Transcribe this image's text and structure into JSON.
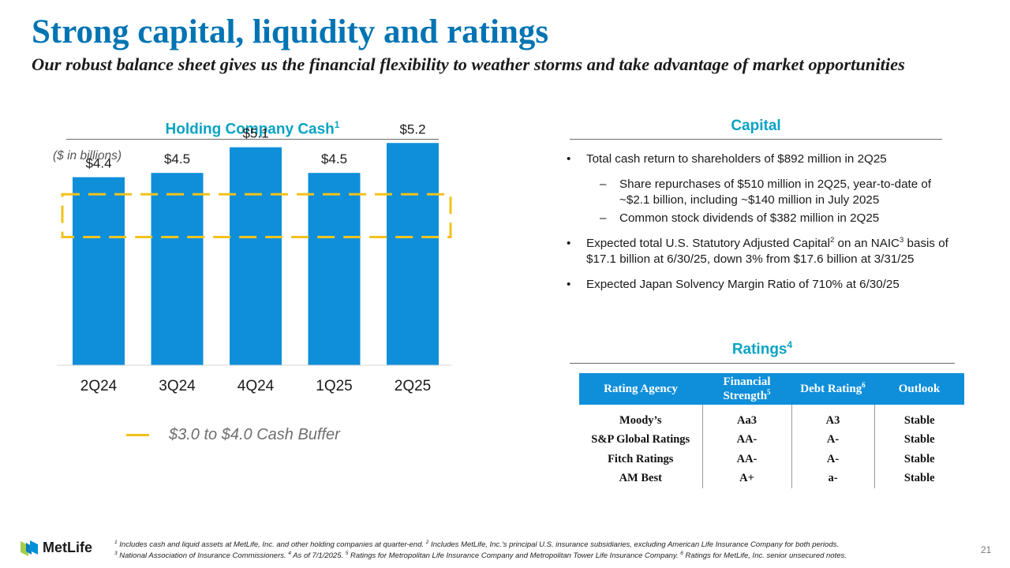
{
  "header": {
    "title": "Strong capital, liquidity and ratings",
    "subtitle": "Our robust balance sheet gives us the financial flexibility to weather storms and take advantage of market opportunities"
  },
  "left_panel": {
    "title": "Holding Company Cash",
    "title_sup": "1",
    "units": "($ in billions)",
    "legend_label": "$3.0 to $4.0 Cash Buffer"
  },
  "chart_data": {
    "type": "bar",
    "title": "Holding Company Cash",
    "units": "$ in billions",
    "categories": [
      "2Q24",
      "3Q24",
      "4Q24",
      "1Q25",
      "2Q25"
    ],
    "values": [
      4.4,
      4.5,
      5.1,
      4.5,
      5.2
    ],
    "data_labels": [
      "$4.4",
      "$4.5",
      "$5.1",
      "$4.5",
      "$5.2"
    ],
    "ylim": [
      0,
      5.5
    ],
    "buffer_range": [
      3.0,
      4.0
    ],
    "bar_color": "#0f8fda",
    "buffer_color": "#f2c21b",
    "grid": false
  },
  "capital": {
    "title": "Capital",
    "b1": "Total cash return to shareholders of $892 million in 2Q25",
    "b1_sub1": "Share repurchases of $510 million in 2Q25, year-to-date of ~$2.1 billion, including ~$140 million in July 2025",
    "b1_sub2": "Common stock dividends of $382 million in 2Q25",
    "b2_part1": "Expected total U.S. Statutory Adjusted Capital",
    "b2_sup1": "2",
    "b2_part2": " on an NAIC",
    "b2_sup2": "3",
    "b2_part3": " basis of $17.1 billion at 6/30/25, down 3% from $17.6 billion at 3/31/25",
    "b3": "Expected Japan Solvency Margin Ratio of 710% at 6/30/25"
  },
  "ratings": {
    "title": "Ratings",
    "title_sup": "4",
    "headers": {
      "agency": "Rating Agency",
      "financial": "Financial Strength",
      "financial_sup": "5",
      "debt": "Debt Rating",
      "debt_sup": "6",
      "outlook": "Outlook"
    },
    "rows": [
      {
        "agency": "Moody’s",
        "financial": "Aa3",
        "debt": "A3",
        "outlook": "Stable"
      },
      {
        "agency": "S&P Global Ratings",
        "financial": "AA-",
        "debt": "A-",
        "outlook": "Stable"
      },
      {
        "agency": "Fitch Ratings",
        "financial": "AA-",
        "debt": "A-",
        "outlook": "Stable"
      },
      {
        "agency": "AM Best",
        "financial": "A+",
        "debt": "a-",
        "outlook": "Stable"
      }
    ]
  },
  "footer": {
    "logo_text": "MetLife",
    "fn1": "Includes cash and liquid assets at MetLife, Inc. and other holding companies at quarter-end.",
    "fn2": "Includes MetLife, Inc.’s principal U.S. insurance subsidiaries, excluding American Life Insurance Company for both periods.",
    "fn3": "National Association of Insurance Commissioners.",
    "fn4": "As of 7/1/2025.",
    "fn5": "Ratings for Metropolitan Life Insurance Company and Metropolitan Tower Life Insurance Company.",
    "fn6": "Ratings for MetLife, Inc. senior unsecured notes.",
    "page_number": "21"
  },
  "colors": {
    "brand_blue": "#0074b3",
    "section_teal": "#0aa3c4",
    "bar_blue": "#0f8fda",
    "buffer_yellow": "#f2c21b",
    "logo_green": "#a4ce4e",
    "logo_blue": "#0090da"
  }
}
